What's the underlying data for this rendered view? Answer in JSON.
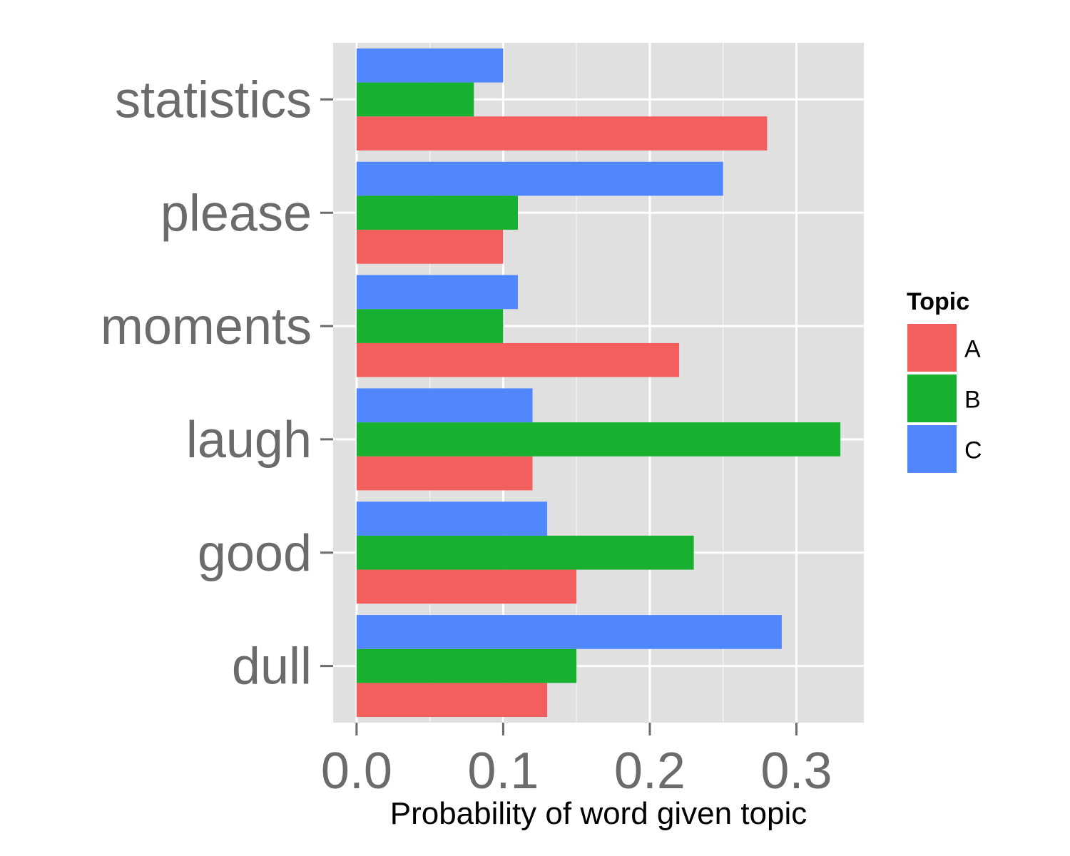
{
  "chart_data": {
    "type": "bar",
    "orientation": "horizontal",
    "title": "",
    "xlabel": "Probability of word given topic",
    "ylabel": "",
    "categories": [
      "statistics",
      "please",
      "moments",
      "laugh",
      "good",
      "dull"
    ],
    "series": [
      {
        "name": "A",
        "color": "#f25f5c",
        "values": [
          0.28,
          0.1,
          0.22,
          0.12,
          0.15,
          0.13
        ]
      },
      {
        "name": "B",
        "color": "#17b12f",
        "values": [
          0.08,
          0.11,
          0.1,
          0.33,
          0.23,
          0.15
        ]
      },
      {
        "name": "C",
        "color": "#5087ff",
        "values": [
          0.1,
          0.25,
          0.11,
          0.12,
          0.13,
          0.29
        ]
      }
    ],
    "xticks": [
      "0.0",
      "0.1",
      "0.2",
      "0.3"
    ],
    "xlim": [
      -0.016,
      0.346
    ],
    "grid": true,
    "legend": {
      "title": "Topic",
      "placement": "right"
    }
  }
}
